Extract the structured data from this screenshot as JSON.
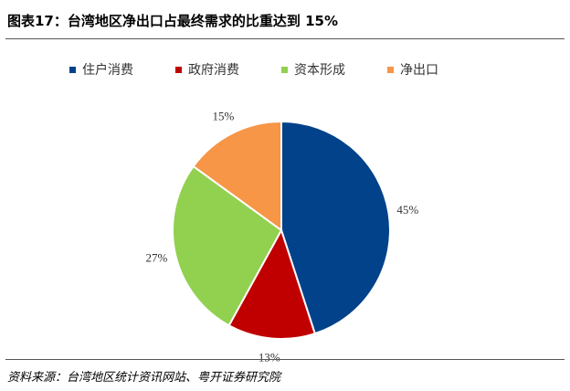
{
  "header": {
    "title": "图表17：台湾地区净出口占最终需求的比重达到 15%"
  },
  "footer": {
    "source": "资料来源：台湾地区统计资讯网站、粤开证券研究院"
  },
  "chart_data": {
    "type": "pie",
    "title": "",
    "legend_position": "top",
    "slices": [
      {
        "name": "住户消费",
        "value": 45,
        "label": "45%",
        "color": "#01428A"
      },
      {
        "name": "政府消费",
        "value": 13,
        "label": "13%",
        "color": "#C00000"
      },
      {
        "name": "资本形成",
        "value": 27,
        "label": "27%",
        "color": "#92D050"
      },
      {
        "name": "净出口",
        "value": 15,
        "label": "15%",
        "color": "#F79646"
      }
    ]
  }
}
